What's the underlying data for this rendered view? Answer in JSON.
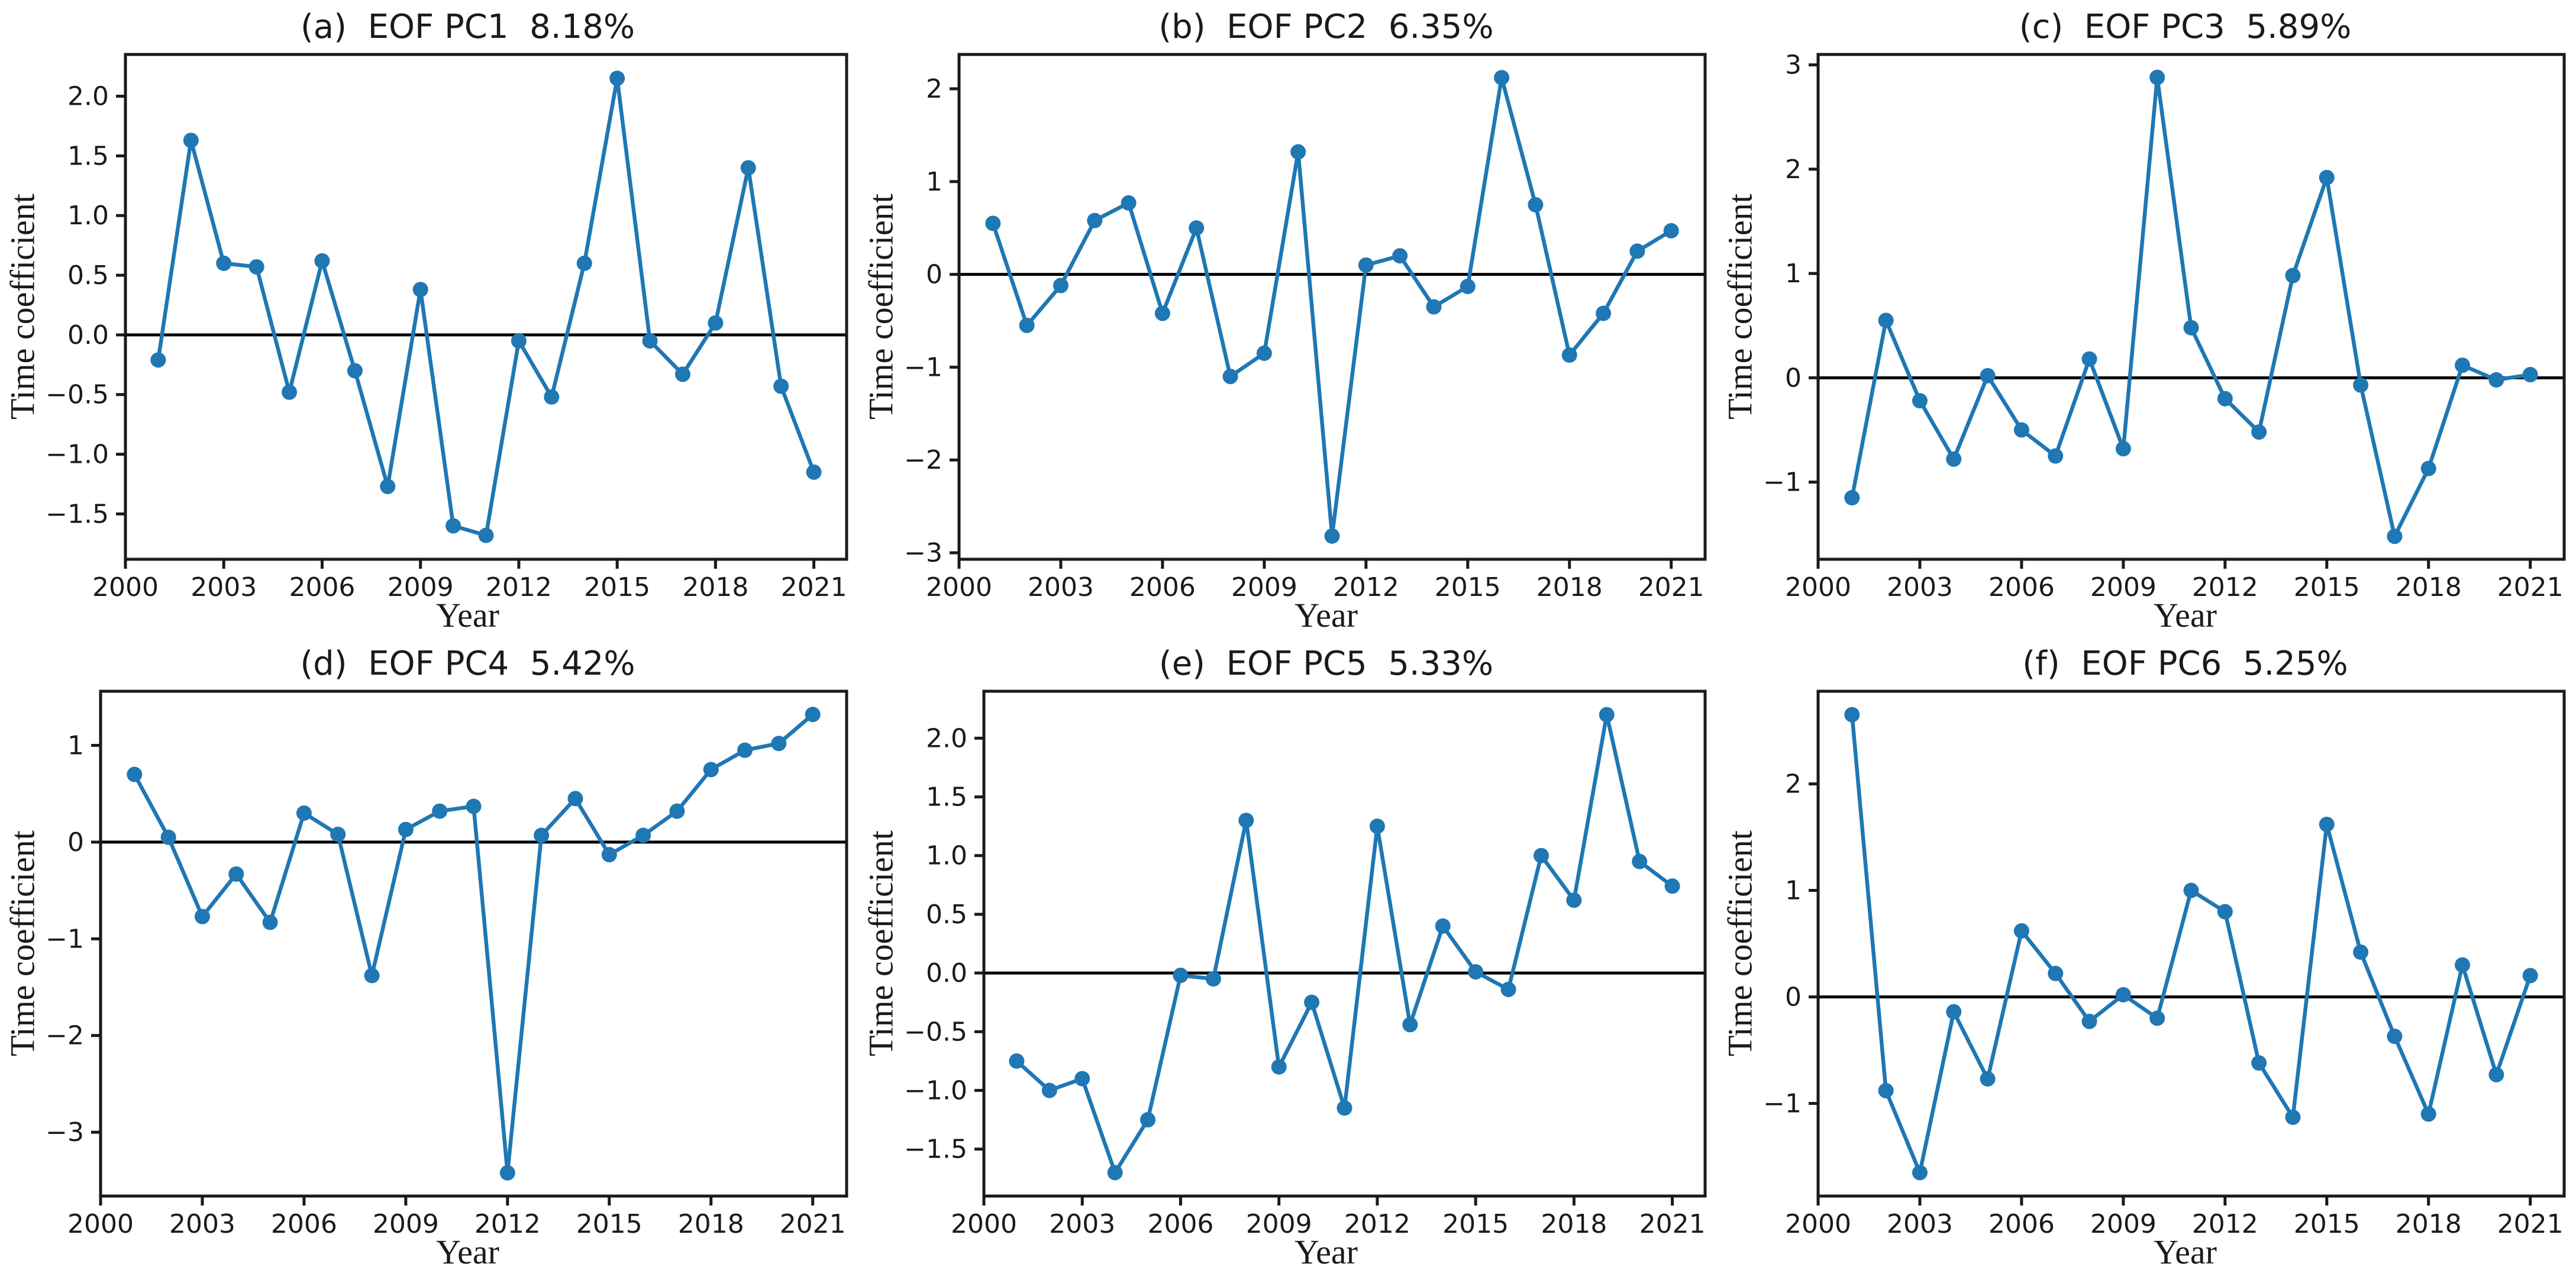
{
  "figure": {
    "background": "#ffffff",
    "colors": {
      "line": "#1f77b4",
      "axis": "#1a1a1a",
      "zero_line": "#000000"
    }
  },
  "chart_data": [
    {
      "type": "line",
      "panel": "a",
      "title": "(a)  EOF PC1  8.18%",
      "xlabel": "Year",
      "ylabel": "Time coefficient",
      "x": [
        2001,
        2002,
        2003,
        2004,
        2005,
        2006,
        2007,
        2008,
        2009,
        2010,
        2011,
        2012,
        2013,
        2014,
        2015,
        2016,
        2017,
        2018,
        2019,
        2020,
        2021
      ],
      "values": [
        -0.21,
        1.63,
        0.6,
        0.57,
        -0.48,
        0.62,
        -0.3,
        -1.27,
        0.38,
        -1.6,
        -1.68,
        -0.05,
        -0.52,
        0.6,
        2.15,
        -0.05,
        -0.33,
        0.1,
        1.4,
        -0.43,
        -1.15
      ],
      "xlim": [
        2000,
        2022
      ],
      "ylim": [
        -1.88,
        2.35
      ],
      "xticks": [
        2000,
        2003,
        2006,
        2009,
        2012,
        2015,
        2018,
        2021
      ],
      "yticks": [
        -1.5,
        -1.0,
        -0.5,
        0.0,
        0.5,
        1.0,
        1.5,
        2.0
      ],
      "ytick_decimals": 1,
      "zero_line": true,
      "grid": false,
      "legend": "none",
      "line_color": "#1f77b4",
      "marker": "circle",
      "layout": {
        "left_margin": 212
      }
    },
    {
      "type": "line",
      "panel": "b",
      "title": "(b)  EOF PC2  6.35%",
      "xlabel": "Year",
      "ylabel": "Time coefficient",
      "x": [
        2001,
        2002,
        2003,
        2004,
        2005,
        2006,
        2007,
        2008,
        2009,
        2010,
        2011,
        2012,
        2013,
        2014,
        2015,
        2016,
        2017,
        2018,
        2019,
        2020,
        2021
      ],
      "values": [
        0.55,
        -0.55,
        -0.12,
        0.58,
        0.77,
        -0.42,
        0.5,
        -1.1,
        -0.85,
        1.32,
        -2.82,
        0.1,
        0.2,
        -0.35,
        -0.13,
        2.12,
        0.75,
        -0.87,
        -0.42,
        0.25,
        0.47
      ],
      "xlim": [
        2000,
        2022
      ],
      "ylim": [
        -3.07,
        2.37
      ],
      "xticks": [
        2000,
        2003,
        2006,
        2009,
        2012,
        2015,
        2018,
        2021
      ],
      "yticks": [
        -3,
        -2,
        -1,
        0,
        1,
        2
      ],
      "ytick_decimals": 0,
      "zero_line": true,
      "grid": false,
      "legend": "none",
      "line_color": "#1f77b4",
      "marker": "circle",
      "layout": {
        "left_margin": 170
      }
    },
    {
      "type": "line",
      "panel": "c",
      "title": "(c)  EOF PC3  5.89%",
      "xlabel": "Year",
      "ylabel": "Time coefficient",
      "x": [
        2001,
        2002,
        2003,
        2004,
        2005,
        2006,
        2007,
        2008,
        2009,
        2010,
        2011,
        2012,
        2013,
        2014,
        2015,
        2016,
        2017,
        2018,
        2019,
        2020,
        2021
      ],
      "values": [
        -1.15,
        0.55,
        -0.22,
        -0.78,
        0.02,
        -0.5,
        -0.75,
        0.18,
        -0.68,
        2.88,
        0.48,
        -0.2,
        -0.52,
        0.98,
        1.92,
        -0.07,
        -1.52,
        -0.87,
        0.12,
        -0.02,
        0.03
      ],
      "xlim": [
        2000,
        2022
      ],
      "ylim": [
        -1.74,
        3.1
      ],
      "xticks": [
        2000,
        2003,
        2006,
        2009,
        2012,
        2015,
        2018,
        2021
      ],
      "yticks": [
        -1,
        0,
        1,
        2,
        3
      ],
      "ytick_decimals": 0,
      "zero_line": true,
      "grid": false,
      "legend": "none",
      "line_color": "#1f77b4",
      "marker": "circle",
      "layout": {
        "left_margin": 170
      }
    },
    {
      "type": "line",
      "panel": "d",
      "title": "(d)  EOF PC4  5.42%",
      "xlabel": "Year",
      "ylabel": "Time coefficient",
      "x": [
        2001,
        2002,
        2003,
        2004,
        2005,
        2006,
        2007,
        2008,
        2009,
        2010,
        2011,
        2012,
        2013,
        2014,
        2015,
        2016,
        2017,
        2018,
        2019,
        2020,
        2021
      ],
      "values": [
        0.7,
        0.05,
        -0.77,
        -0.33,
        -0.83,
        0.3,
        0.08,
        -1.38,
        0.13,
        0.32,
        0.37,
        -3.42,
        0.07,
        0.45,
        -0.13,
        0.07,
        0.32,
        0.75,
        0.95,
        1.02,
        1.32
      ],
      "xlim": [
        2000,
        2022
      ],
      "ylim": [
        -3.66,
        1.56
      ],
      "xticks": [
        2000,
        2003,
        2006,
        2009,
        2012,
        2015,
        2018,
        2021
      ],
      "yticks": [
        -3,
        -2,
        -1,
        0,
        1
      ],
      "ytick_decimals": 0,
      "zero_line": true,
      "grid": false,
      "legend": "none",
      "line_color": "#1f77b4",
      "marker": "circle",
      "layout": {
        "left_margin": 170
      }
    },
    {
      "type": "line",
      "panel": "e",
      "title": "(e)  EOF PC5  5.33%",
      "xlabel": "Year",
      "ylabel": "Time coefficient",
      "x": [
        2001,
        2002,
        2003,
        2004,
        2005,
        2006,
        2007,
        2008,
        2009,
        2010,
        2011,
        2012,
        2013,
        2014,
        2015,
        2016,
        2017,
        2018,
        2019,
        2020,
        2021
      ],
      "values": [
        -0.75,
        -1.0,
        -0.9,
        -1.7,
        -1.25,
        -0.02,
        -0.05,
        1.3,
        -0.8,
        -0.25,
        -1.15,
        1.25,
        -0.44,
        0.4,
        0.01,
        -0.14,
        1.0,
        0.62,
        2.2,
        0.95,
        0.74
      ],
      "xlim": [
        2000,
        2022
      ],
      "ylim": [
        -1.9,
        2.4
      ],
      "xticks": [
        2000,
        2003,
        2006,
        2009,
        2012,
        2015,
        2018,
        2021
      ],
      "yticks": [
        -1.5,
        -1.0,
        -0.5,
        0.0,
        0.5,
        1.0,
        1.5,
        2.0
      ],
      "ytick_decimals": 1,
      "zero_line": true,
      "grid": false,
      "legend": "none",
      "line_color": "#1f77b4",
      "marker": "circle",
      "layout": {
        "left_margin": 212
      }
    },
    {
      "type": "line",
      "panel": "f",
      "title": "(f)  EOF PC6  5.25%",
      "xlabel": "Year",
      "ylabel": "Time coefficient",
      "x": [
        2001,
        2002,
        2003,
        2004,
        2005,
        2006,
        2007,
        2008,
        2009,
        2010,
        2011,
        2012,
        2013,
        2014,
        2015,
        2016,
        2017,
        2018,
        2019,
        2020,
        2021
      ],
      "values": [
        2.65,
        -0.88,
        -1.65,
        -0.14,
        -0.77,
        0.62,
        0.22,
        -0.23,
        0.02,
        -0.2,
        1.0,
        0.8,
        -0.62,
        -1.13,
        1.62,
        0.42,
        -0.37,
        -1.1,
        0.3,
        -0.73,
        0.2
      ],
      "xlim": [
        2000,
        2022
      ],
      "ylim": [
        -1.87,
        2.87
      ],
      "xticks": [
        2000,
        2003,
        2006,
        2009,
        2012,
        2015,
        2018,
        2021
      ],
      "yticks": [
        -1,
        0,
        1,
        2
      ],
      "ytick_decimals": 0,
      "zero_line": true,
      "grid": false,
      "legend": "none",
      "line_color": "#1f77b4",
      "marker": "circle",
      "layout": {
        "left_margin": 170
      }
    }
  ]
}
